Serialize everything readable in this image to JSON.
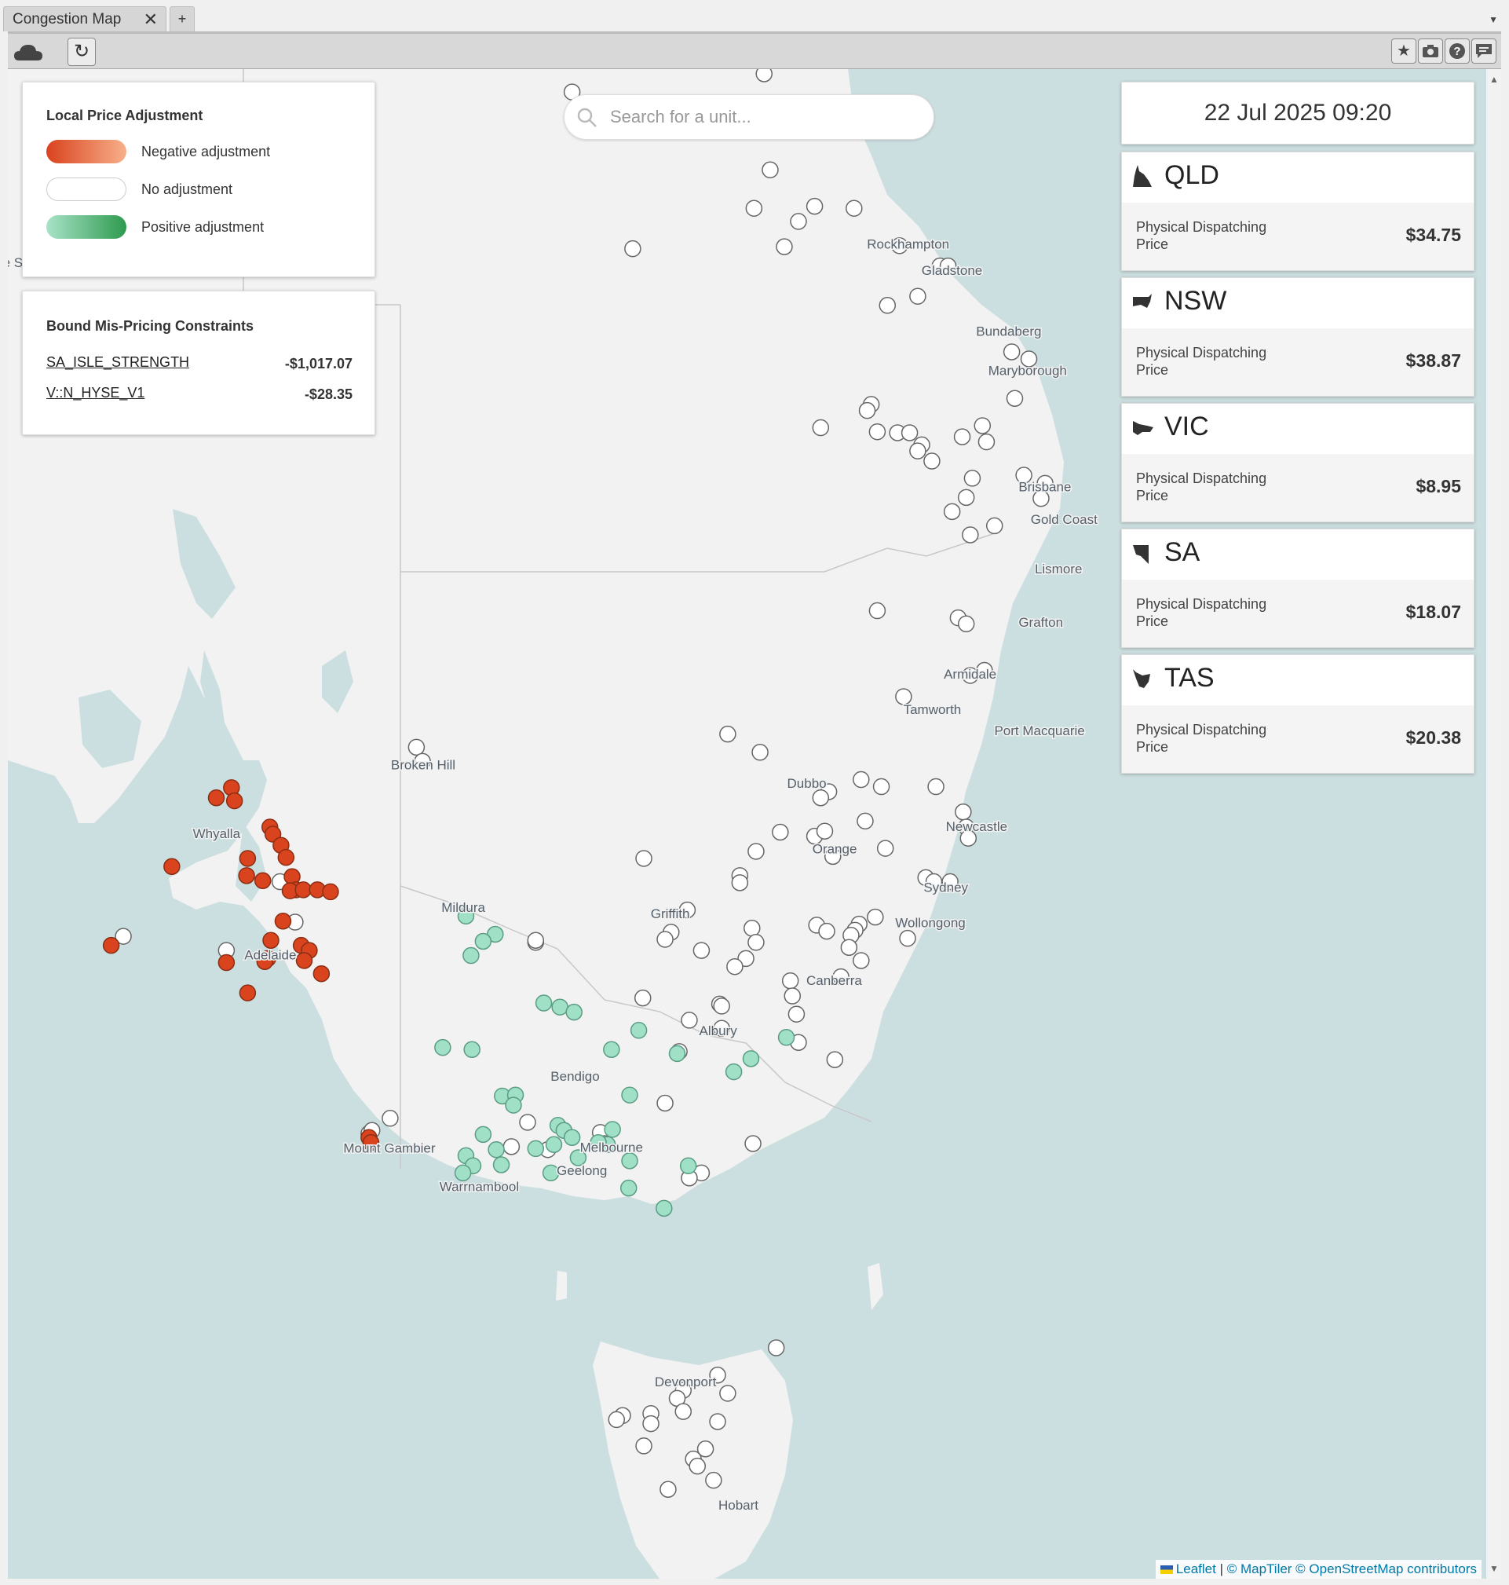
{
  "tab": {
    "title": "Congestion Map",
    "close": "✕",
    "new": "+"
  },
  "legend": {
    "title": "Local Price Adjustment",
    "items": [
      {
        "label": "Negative adjustment",
        "colors": [
          "#d9431e",
          "#f7b08a"
        ]
      },
      {
        "label": "No adjustment",
        "colors": [
          "#ffffff",
          "#ffffff"
        ]
      },
      {
        "label": "Positive adjustment",
        "colors": [
          "#a8e3c8",
          "#2e9a4e"
        ]
      }
    ]
  },
  "constraints": {
    "title": "Bound Mis-Pricing Constraints",
    "items": [
      {
        "name": "SA_ISLE_STRENGTH",
        "value": "-$1,017.07"
      },
      {
        "name": "V::N_HYSE_V1",
        "value": "-$28.35"
      }
    ]
  },
  "search": {
    "placeholder": "Search for a unit..."
  },
  "datetime": "22 Jul 2025 09:20",
  "regions": [
    {
      "name": "QLD",
      "price_label": "Physical Dispatching Price",
      "price": "$34.75"
    },
    {
      "name": "NSW",
      "price_label": "Physical Dispatching Price",
      "price": "$38.87"
    },
    {
      "name": "VIC",
      "price_label": "Physical Dispatching Price",
      "price": "$8.95"
    },
    {
      "name": "SA",
      "price_label": "Physical Dispatching Price",
      "price": "$18.07"
    },
    {
      "name": "TAS",
      "price_label": "Physical Dispatching Price",
      "price": "$20.38"
    }
  ],
  "map": {
    "cities": [
      "Rockhampton",
      "Gladstone",
      "Bundaberg",
      "Maryborough",
      "Brisbane",
      "Gold Coast",
      "Lismore",
      "Grafton",
      "Armidale",
      "Tamworth",
      "Port Macquarie",
      "Broken Hill",
      "Dubbo",
      "Newcastle",
      "Orange",
      "Sydney",
      "Griffith",
      "Wollongong",
      "Mildura",
      "Canberra",
      "Albury",
      "Bendigo",
      "Whyalla",
      "Adelaide",
      "Mount Gambier",
      "Melbourne",
      "Geelong",
      "Warrnambool",
      "Devonport",
      "Hobart",
      "e S"
    ],
    "colors": {
      "negative": "#d9431e",
      "positive": "#9fe0c6",
      "neutral": "#ffffff",
      "land": "#f2f2f2",
      "sea": "#ccdfe0"
    }
  },
  "attribution": {
    "leaflet": "Leaflet",
    "sep": "|",
    "rest": "© MapTiler © OpenStreetMap contributors"
  },
  "icons": {
    "cloud": "cloud-icon",
    "reload": "reload-icon",
    "star": "star-icon",
    "camera": "camera-icon",
    "help": "help-icon",
    "chat": "chat-icon",
    "search": "search-icon"
  }
}
